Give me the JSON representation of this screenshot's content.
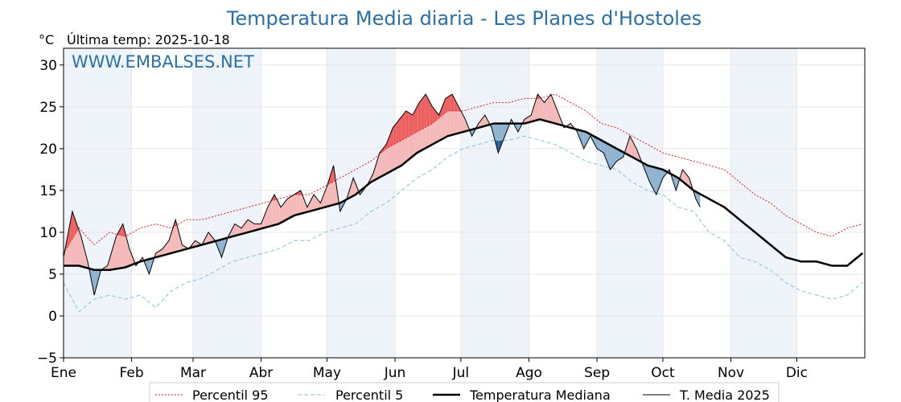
{
  "title": "Temperatura Media diaria - Les Planes d'Hostoles",
  "unit_label": "°C",
  "last_temp": "Última temp: 2025-10-18",
  "watermark": "WWW.EMBALSES.NET",
  "chart_data": {
    "type": "line",
    "title": "Temperatura Media diaria - Les Planes d'Hostoles",
    "ylabel": "°C",
    "xlabel": "",
    "ylim": [
      -5,
      32
    ],
    "yticks": [
      -5,
      0,
      5,
      10,
      15,
      20,
      25,
      30
    ],
    "ytick_labels": [
      "−5",
      "0",
      "5",
      "10",
      "15",
      "20",
      "25",
      "30"
    ],
    "xlim": [
      1,
      366
    ],
    "month_ticks": [
      {
        "day": 1,
        "label": "Ene"
      },
      {
        "day": 32,
        "label": "Feb"
      },
      {
        "day": 60,
        "label": "Mar"
      },
      {
        "day": 91,
        "label": "Abr"
      },
      {
        "day": 121,
        "label": "May"
      },
      {
        "day": 152,
        "label": "Jun"
      },
      {
        "day": 182,
        "label": "Jul"
      },
      {
        "day": 213,
        "label": "Ago"
      },
      {
        "day": 244,
        "label": "Sep"
      },
      {
        "day": 274,
        "label": "Oct"
      },
      {
        "day": 305,
        "label": "Nov"
      },
      {
        "day": 335,
        "label": "Dic"
      }
    ],
    "grid": true,
    "legend_position": "bottom",
    "colors": {
      "p95": "#e41a1c",
      "p5": "#87c3dd",
      "median": "#000000",
      "current": "#000000",
      "above_fill": "#f4b6b6",
      "above_extreme": "#ec5b5b",
      "below_fill": "#8ab0d0",
      "below_extreme": "#1f5a96",
      "month_band": "#eef4fa"
    },
    "series": [
      {
        "name": "Percentil 95",
        "style": "dotted",
        "x": [
          1,
          8,
          15,
          22,
          29,
          36,
          43,
          50,
          57,
          64,
          71,
          78,
          85,
          92,
          99,
          106,
          113,
          120,
          127,
          134,
          141,
          148,
          155,
          162,
          169,
          176,
          183,
          190,
          197,
          204,
          211,
          218,
          225,
          232,
          239,
          246,
          253,
          260,
          267,
          274,
          281,
          288,
          295,
          302,
          309,
          316,
          323,
          330,
          337,
          344,
          351,
          358,
          365
        ],
        "y": [
          7.5,
          10.5,
          8.5,
          10.0,
          9.5,
          10.5,
          11.0,
          10.5,
          11.5,
          11.5,
          12.0,
          12.5,
          13.0,
          13.5,
          14.0,
          14.5,
          14.5,
          15.5,
          16.5,
          17.5,
          18.5,
          20.0,
          21.0,
          22.0,
          23.0,
          24.5,
          24.5,
          25.0,
          25.5,
          25.5,
          26.0,
          26.0,
          26.5,
          25.5,
          24.5,
          23.0,
          22.5,
          21.5,
          20.5,
          19.5,
          19.0,
          18.5,
          18.0,
          17.5,
          16.0,
          14.5,
          13.5,
          12.0,
          11.0,
          10.0,
          9.5,
          10.5,
          11.0
        ]
      },
      {
        "name": "Percentil 5",
        "style": "dashed",
        "x": [
          1,
          8,
          15,
          22,
          29,
          36,
          43,
          50,
          57,
          64,
          71,
          78,
          85,
          92,
          99,
          106,
          113,
          120,
          127,
          134,
          141,
          148,
          155,
          162,
          169,
          176,
          183,
          190,
          197,
          204,
          211,
          218,
          225,
          232,
          239,
          246,
          253,
          260,
          267,
          274,
          281,
          288,
          295,
          302,
          309,
          316,
          323,
          330,
          337,
          344,
          351,
          358,
          365
        ],
        "y": [
          4.0,
          0.5,
          2.0,
          2.5,
          2.0,
          2.5,
          1.0,
          3.0,
          4.0,
          4.5,
          5.5,
          6.5,
          7.0,
          7.5,
          8.0,
          9.0,
          9.0,
          10.0,
          10.5,
          11.0,
          12.5,
          13.5,
          15.0,
          16.5,
          17.5,
          19.0,
          20.0,
          20.5,
          21.0,
          21.0,
          21.5,
          21.0,
          20.5,
          19.5,
          18.5,
          18.0,
          17.5,
          16.0,
          15.0,
          14.5,
          13.0,
          12.5,
          10.0,
          9.0,
          7.0,
          6.5,
          5.5,
          4.0,
          3.0,
          2.5,
          2.0,
          2.5,
          4.0
        ]
      },
      {
        "name": "Temperatura Mediana",
        "style": "thick",
        "x": [
          1,
          8,
          15,
          22,
          29,
          36,
          43,
          50,
          57,
          64,
          71,
          78,
          85,
          92,
          99,
          106,
          113,
          120,
          127,
          134,
          141,
          148,
          155,
          162,
          169,
          176,
          183,
          190,
          197,
          204,
          211,
          218,
          225,
          232,
          239,
          246,
          253,
          260,
          267,
          274,
          281,
          288,
          295,
          302,
          309,
          316,
          323,
          330,
          337,
          344,
          351,
          358,
          365
        ],
        "y": [
          6.0,
          6.0,
          5.5,
          5.5,
          5.8,
          6.5,
          7.0,
          7.5,
          8.0,
          8.5,
          9.0,
          9.5,
          10.0,
          10.5,
          11.0,
          12.0,
          12.5,
          13.0,
          13.5,
          14.5,
          16.0,
          17.0,
          18.0,
          19.5,
          20.5,
          21.5,
          22.0,
          22.5,
          23.0,
          23.0,
          23.0,
          23.5,
          23.0,
          22.5,
          22.0,
          21.0,
          20.0,
          19.0,
          18.0,
          17.5,
          16.5,
          15.0,
          14.0,
          13.0,
          11.5,
          10.0,
          8.5,
          7.0,
          6.5,
          6.5,
          6.0,
          6.0,
          7.5
        ]
      },
      {
        "name": "T. Media 2025",
        "style": "solid",
        "x": [
          1,
          5,
          9,
          12,
          15,
          18,
          21,
          25,
          28,
          31,
          34,
          37,
          40,
          43,
          46,
          49,
          52,
          55,
          58,
          61,
          64,
          67,
          70,
          73,
          76,
          79,
          82,
          85,
          88,
          91,
          94,
          97,
          100,
          103,
          106,
          109,
          112,
          115,
          118,
          121,
          124,
          127,
          130,
          133,
          136,
          139,
          142,
          145,
          148,
          151,
          154,
          157,
          160,
          163,
          166,
          169,
          172,
          175,
          178,
          181,
          184,
          187,
          190,
          193,
          196,
          199,
          202,
          205,
          208,
          211,
          214,
          217,
          220,
          223,
          226,
          229,
          232,
          235,
          238,
          241,
          244,
          247,
          250,
          253,
          256,
          259,
          262,
          265,
          268,
          271,
          274,
          277,
          280,
          283,
          286,
          289,
          291
        ],
        "y": [
          7.0,
          12.5,
          9.5,
          6.5,
          2.5,
          5.5,
          6.0,
          9.5,
          11.0,
          8.0,
          6.0,
          7.0,
          5.0,
          7.5,
          8.0,
          9.0,
          11.5,
          8.5,
          8.0,
          9.0,
          8.5,
          10.0,
          9.0,
          7.0,
          9.5,
          11.0,
          10.5,
          11.5,
          11.0,
          11.0,
          13.0,
          14.5,
          13.0,
          14.0,
          14.5,
          15.0,
          13.0,
          14.5,
          13.5,
          15.5,
          18.0,
          12.5,
          14.0,
          16.5,
          14.5,
          15.5,
          17.0,
          19.5,
          20.5,
          22.5,
          23.5,
          24.5,
          24.0,
          25.5,
          26.5,
          25.0,
          24.0,
          26.0,
          26.5,
          25.0,
          23.5,
          21.5,
          23.0,
          24.0,
          22.5,
          19.5,
          21.5,
          23.5,
          22.0,
          23.5,
          24.0,
          26.5,
          25.5,
          26.5,
          24.5,
          22.5,
          23.0,
          22.0,
          20.0,
          21.5,
          20.0,
          19.5,
          17.5,
          18.5,
          19.0,
          21.5,
          20.0,
          18.0,
          16.0,
          14.5,
          16.5,
          17.5,
          15.0,
          17.5,
          16.5,
          14.0,
          13.0
        ]
      }
    ]
  }
}
